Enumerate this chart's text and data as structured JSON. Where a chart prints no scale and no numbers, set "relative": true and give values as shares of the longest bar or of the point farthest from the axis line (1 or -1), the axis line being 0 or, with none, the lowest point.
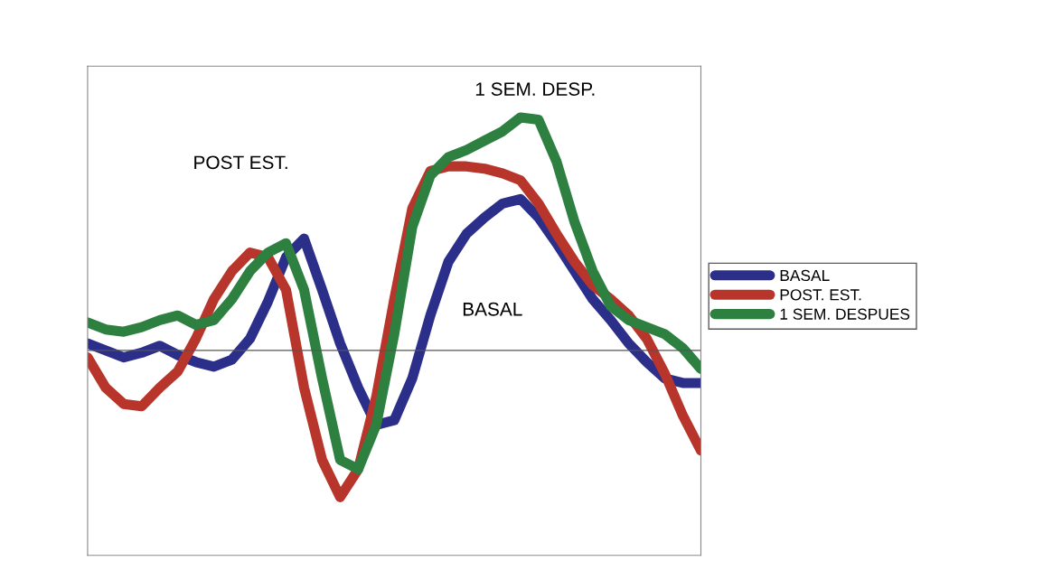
{
  "chart_data": {
    "type": "line",
    "relative": true,
    "legend": "right",
    "categories": [
      null,
      null,
      null,
      null,
      null,
      null,
      null,
      null,
      null,
      null,
      null,
      null,
      null,
      null,
      null,
      null,
      null,
      null,
      null,
      null,
      null,
      null,
      null,
      null,
      null,
      null,
      null,
      null,
      null,
      null,
      null,
      null,
      null,
      null,
      null
    ],
    "series": [
      {
        "name": "BASAL",
        "color": "#2b2f8a",
        "values": [
          0.03,
          0,
          -0.03,
          -0.01,
          0.02,
          -0.02,
          -0.05,
          -0.07,
          -0.04,
          0.05,
          0.21,
          0.4,
          0.48,
          0.26,
          0.03,
          -0.16,
          -0.32,
          -0.3,
          -0.12,
          0.15,
          0.38,
          0.5,
          0.57,
          0.63,
          0.65,
          0.57,
          0.46,
          0.34,
          0.22,
          0.13,
          0.03,
          -0.05,
          -0.12,
          -0.14,
          -0.14
        ]
      },
      {
        "name": "POST. EST.",
        "color": "#b7352b",
        "values": [
          -0.03,
          -0.16,
          -0.23,
          -0.24,
          -0.16,
          -0.09,
          0.05,
          0.22,
          0.34,
          0.42,
          0.4,
          0.26,
          -0.16,
          -0.47,
          -0.63,
          -0.51,
          -0.2,
          0.22,
          0.61,
          0.77,
          0.79,
          0.79,
          0.78,
          0.76,
          0.73,
          0.63,
          0.5,
          0.38,
          0.28,
          0.22,
          0.15,
          0.05,
          -0.1,
          -0.28,
          -0.43
        ]
      },
      {
        "name": "1 SEM. DESPUES",
        "color": "#2e8040",
        "values": [
          0.12,
          0.09,
          0.08,
          0.1,
          0.13,
          0.15,
          0.11,
          0.13,
          0.22,
          0.34,
          0.42,
          0.46,
          0.26,
          -0.12,
          -0.47,
          -0.51,
          -0.32,
          0.07,
          0.53,
          0.75,
          0.83,
          0.86,
          0.9,
          0.94,
          1,
          0.99,
          0.81,
          0.55,
          0.34,
          0.19,
          0.13,
          0.1,
          0.07,
          0.01,
          -0.08
        ]
      }
    ],
    "annotations": [
      "POST EST.",
      "1 SEM. DESP.",
      "BASAL"
    ]
  }
}
